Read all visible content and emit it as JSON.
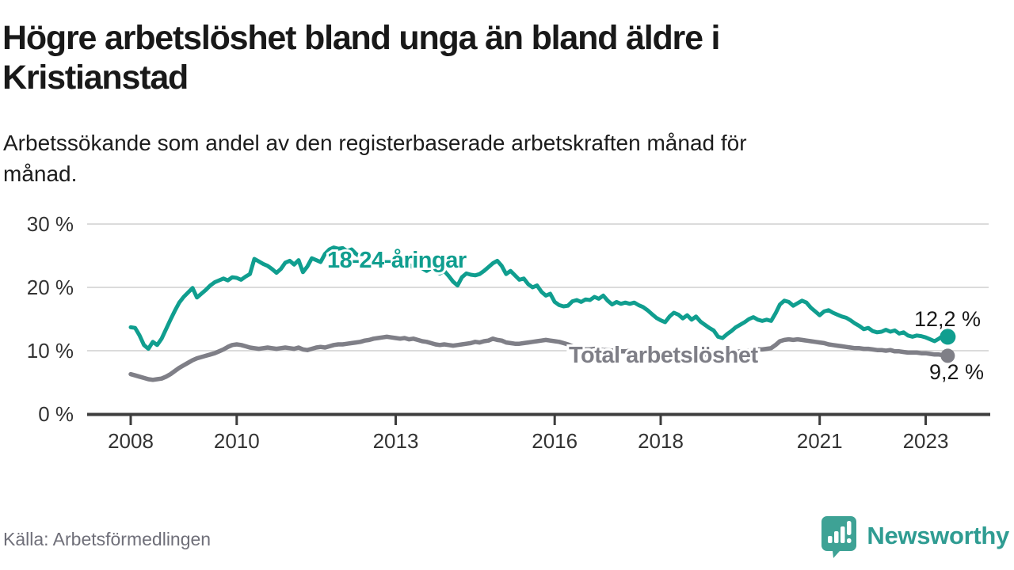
{
  "header": {
    "title": "Högre arbetslöshet bland unga än bland äldre i\nKristianstad",
    "subtitle": "Arbetssökande som andel av den registerbaserade arbetskraften månad för\nmånad."
  },
  "footer": {
    "source": "Källa: Arbetsförmedlingen",
    "brand": "Newsworthy"
  },
  "colors": {
    "youth_line": "#109E8F",
    "total_line": "#7F7F87",
    "grid": "#DBDBDB",
    "axis": "#3D3D3D",
    "tick_text": "#333333",
    "value_text": "#191919",
    "brand_teal": "#3EA295",
    "brand_text_teal": "#2F9C92"
  },
  "chart_data": {
    "type": "line",
    "title": "Högre arbetslöshet bland unga än bland äldre i Kristianstad",
    "subtitle": "Arbetssökande som andel av den registerbaserade arbetskraften månad för månad.",
    "x_start_year": 2008,
    "x_step_months": 1,
    "ylim": [
      0,
      30
    ],
    "grid": "horizontal",
    "y_ticks": [
      {
        "value": 0,
        "label": "0 %"
      },
      {
        "value": 10,
        "label": "10 %"
      },
      {
        "value": 20,
        "label": "20 %"
      },
      {
        "value": 30,
        "label": "30 %"
      }
    ],
    "x_ticks": [
      {
        "year": 2008,
        "label": "2008"
      },
      {
        "year": 2010,
        "label": "2010"
      },
      {
        "year": 2013,
        "label": "2013"
      },
      {
        "year": 2016,
        "label": "2016"
      },
      {
        "year": 2018,
        "label": "2018"
      },
      {
        "year": 2021,
        "label": "2021"
      },
      {
        "year": 2023,
        "label": "2023"
      }
    ],
    "series": [
      {
        "name": "18-24-åringar",
        "label": "18-24-åringar",
        "color": "#109E8F",
        "end_value": 12.2,
        "end_label": "12,2 %",
        "values": [
          13.7,
          13.6,
          12.4,
          10.9,
          10.3,
          11.4,
          10.9,
          11.9,
          13.4,
          14.9,
          16.3,
          17.6,
          18.5,
          19.2,
          19.9,
          18.4,
          19.0,
          19.6,
          20.3,
          20.8,
          21.1,
          21.4,
          21.1,
          21.6,
          21.5,
          21.2,
          21.7,
          22.1,
          24.5,
          24.1,
          23.7,
          23.4,
          22.9,
          22.3,
          22.9,
          23.9,
          24.2,
          23.6,
          24.3,
          22.4,
          23.3,
          24.6,
          24.3,
          24.0,
          25.3,
          26.0,
          26.3,
          26.1,
          26.2,
          25.7,
          26.0,
          25.3,
          24.8,
          25.2,
          24.6,
          24.2,
          24.7,
          24.2,
          23.8,
          24.2,
          24.4,
          23.9,
          24.3,
          23.6,
          23.1,
          23.5,
          23.0,
          22.6,
          23.0,
          22.5,
          22.2,
          22.6,
          21.8,
          20.9,
          20.3,
          21.6,
          22.2,
          22.0,
          21.9,
          22.1,
          22.6,
          23.2,
          23.8,
          24.2,
          23.4,
          22.1,
          22.6,
          21.9,
          21.2,
          21.4,
          20.5,
          20.0,
          20.3,
          19.3,
          18.7,
          19.0,
          17.7,
          17.2,
          17.0,
          17.1,
          17.8,
          18.0,
          17.7,
          18.1,
          18.0,
          18.5,
          18.2,
          18.7,
          17.9,
          17.3,
          17.7,
          17.4,
          17.6,
          17.4,
          17.6,
          17.2,
          16.9,
          16.4,
          15.8,
          15.2,
          14.8,
          14.5,
          15.4,
          16.0,
          15.7,
          15.1,
          15.6,
          14.9,
          15.4,
          14.6,
          14.1,
          13.6,
          13.2,
          12.2,
          12.0,
          12.6,
          13.1,
          13.7,
          14.1,
          14.5,
          15.0,
          15.3,
          14.9,
          14.7,
          14.9,
          14.7,
          15.9,
          17.3,
          17.9,
          17.7,
          17.1,
          17.5,
          17.9,
          17.6,
          16.8,
          16.2,
          15.6,
          16.2,
          16.4,
          16.0,
          15.7,
          15.4,
          15.2,
          14.8,
          14.3,
          13.9,
          13.4,
          13.6,
          13.1,
          12.9,
          13.0,
          13.3,
          13.0,
          13.2,
          12.7,
          12.9,
          12.4,
          12.2,
          12.4,
          12.3,
          12.1,
          11.8,
          11.5,
          11.9,
          12.4,
          12.2
        ]
      },
      {
        "name": "Total arbetslöshet",
        "label": "Total arbetslöshet",
        "color": "#7F7F87",
        "end_value": 9.2,
        "end_label": "9,2 %",
        "values": [
          6.3,
          6.1,
          5.9,
          5.7,
          5.5,
          5.4,
          5.5,
          5.6,
          5.9,
          6.3,
          6.8,
          7.3,
          7.7,
          8.1,
          8.5,
          8.8,
          9.0,
          9.2,
          9.4,
          9.6,
          9.9,
          10.2,
          10.6,
          10.9,
          11.0,
          10.9,
          10.7,
          10.5,
          10.4,
          10.3,
          10.4,
          10.5,
          10.4,
          10.3,
          10.4,
          10.5,
          10.4,
          10.3,
          10.5,
          10.2,
          10.1,
          10.3,
          10.5,
          10.6,
          10.5,
          10.7,
          10.9,
          11.0,
          11.0,
          11.1,
          11.2,
          11.3,
          11.4,
          11.6,
          11.7,
          11.9,
          12.0,
          12.1,
          12.2,
          12.1,
          12.0,
          11.9,
          12.0,
          11.8,
          11.9,
          11.7,
          11.5,
          11.4,
          11.2,
          11.0,
          10.9,
          11.0,
          10.9,
          10.8,
          10.9,
          11.0,
          11.1,
          11.2,
          11.4,
          11.3,
          11.5,
          11.6,
          11.9,
          11.7,
          11.6,
          11.3,
          11.2,
          11.1,
          11.1,
          11.2,
          11.3,
          11.4,
          11.5,
          11.6,
          11.7,
          11.6,
          11.5,
          11.4,
          11.2,
          11.0,
          10.7,
          10.4,
          10.3,
          10.2,
          10.2,
          10.3,
          10.2,
          10.1,
          10.1,
          10.0,
          10.0,
          9.9,
          9.9,
          10.0,
          9.8,
          9.7,
          9.7,
          9.6,
          9.6,
          9.5,
          9.5,
          9.4,
          9.5,
          9.4,
          9.3,
          9.4,
          9.3,
          9.3,
          9.4,
          9.3,
          9.4,
          9.5,
          9.5,
          9.6,
          9.6,
          9.7,
          9.7,
          9.8,
          9.9,
          10.0,
          10.0,
          10.1,
          10.2,
          10.2,
          10.3,
          10.4,
          10.9,
          11.5,
          11.7,
          11.8,
          11.7,
          11.8,
          11.7,
          11.6,
          11.5,
          11.4,
          11.3,
          11.2,
          11.0,
          10.9,
          10.8,
          10.7,
          10.6,
          10.5,
          10.4,
          10.4,
          10.3,
          10.3,
          10.2,
          10.1,
          10.1,
          10.0,
          10.1,
          9.9,
          9.9,
          9.8,
          9.7,
          9.7,
          9.7,
          9.6,
          9.6,
          9.5,
          9.4,
          9.4,
          9.3,
          9.2
        ]
      }
    ]
  }
}
